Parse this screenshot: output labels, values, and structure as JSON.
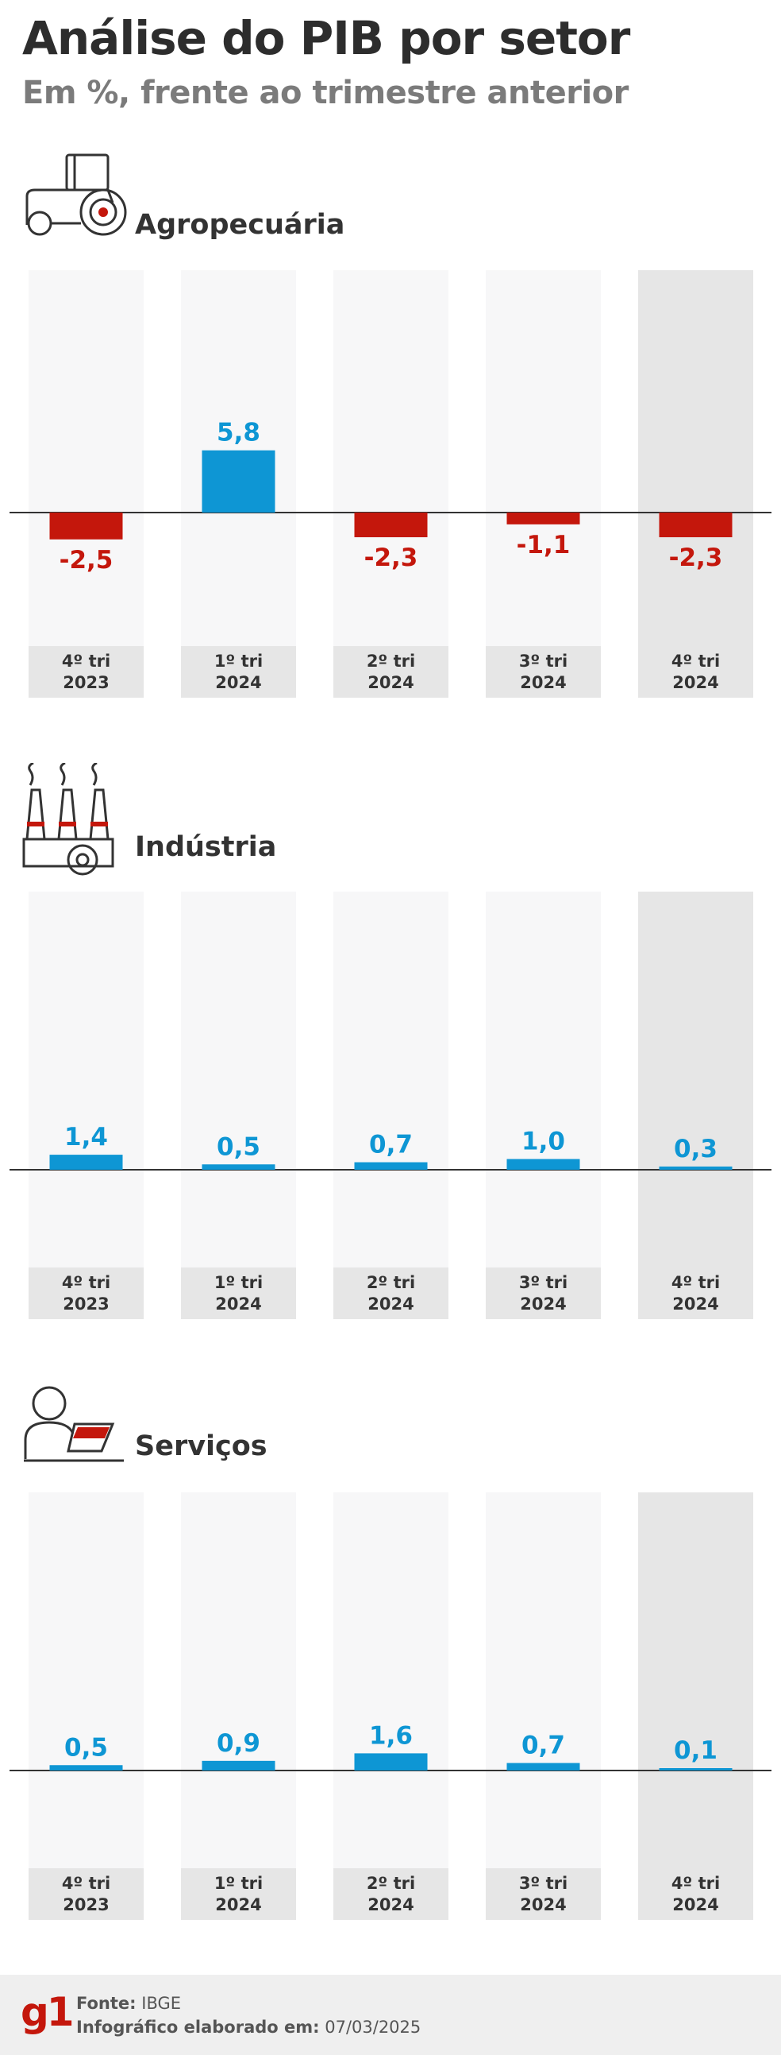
{
  "header": {
    "title": "Análise do PIB por setor",
    "subtitle": "Em %, frente ao trimestre anterior"
  },
  "colors": {
    "positive": "#0e96d4",
    "negative": "#c4170c",
    "column_bg": "#f7f7f8",
    "column_bg_highlight": "#e6e6e6",
    "label_bg": "#e6e6e6"
  },
  "sections": [
    {
      "title": "Agropecuária",
      "icon": "tractor-icon"
    },
    {
      "title": "Indústria",
      "icon": "factory-icon"
    },
    {
      "title": "Serviços",
      "icon": "worker-icon"
    }
  ],
  "chart_data": [
    {
      "type": "bar",
      "categories": [
        "4º tri 2023",
        "1º tri 2024",
        "2º tri 2024",
        "3º tri 2024",
        "4º tri 2024"
      ],
      "values": [
        -2.5,
        5.8,
        -2.3,
        -1.1,
        -2.3
      ],
      "value_labels": [
        "-2,5",
        "5,8",
        "-2,3",
        "-1,1",
        "-2,3"
      ],
      "title": "Agropecuária",
      "highlight_index": 4
    },
    {
      "type": "bar",
      "categories": [
        "4º tri 2023",
        "1º tri 2024",
        "2º tri 2024",
        "3º tri 2024",
        "4º tri 2024"
      ],
      "values": [
        1.4,
        0.5,
        0.7,
        1.0,
        0.3
      ],
      "value_labels": [
        "1,4",
        "0,5",
        "0,7",
        "1,0",
        "0,3"
      ],
      "title": "Indústria",
      "highlight_index": 4
    },
    {
      "type": "bar",
      "categories": [
        "4º tri 2023",
        "1º tri 2024",
        "2º tri 2024",
        "3º tri 2024",
        "4º tri 2024"
      ],
      "values": [
        0.5,
        0.9,
        1.6,
        0.7,
        0.1
      ],
      "value_labels": [
        "0,5",
        "0,9",
        "1,6",
        "0,7",
        "0,1"
      ],
      "title": "Serviços",
      "highlight_index": 4
    }
  ],
  "footer": {
    "logo": "g1",
    "source_label": "Fonte:",
    "source_value": "IBGE",
    "date_label": "Infográfico elaborado em:",
    "date_value": "07/03/2025"
  }
}
